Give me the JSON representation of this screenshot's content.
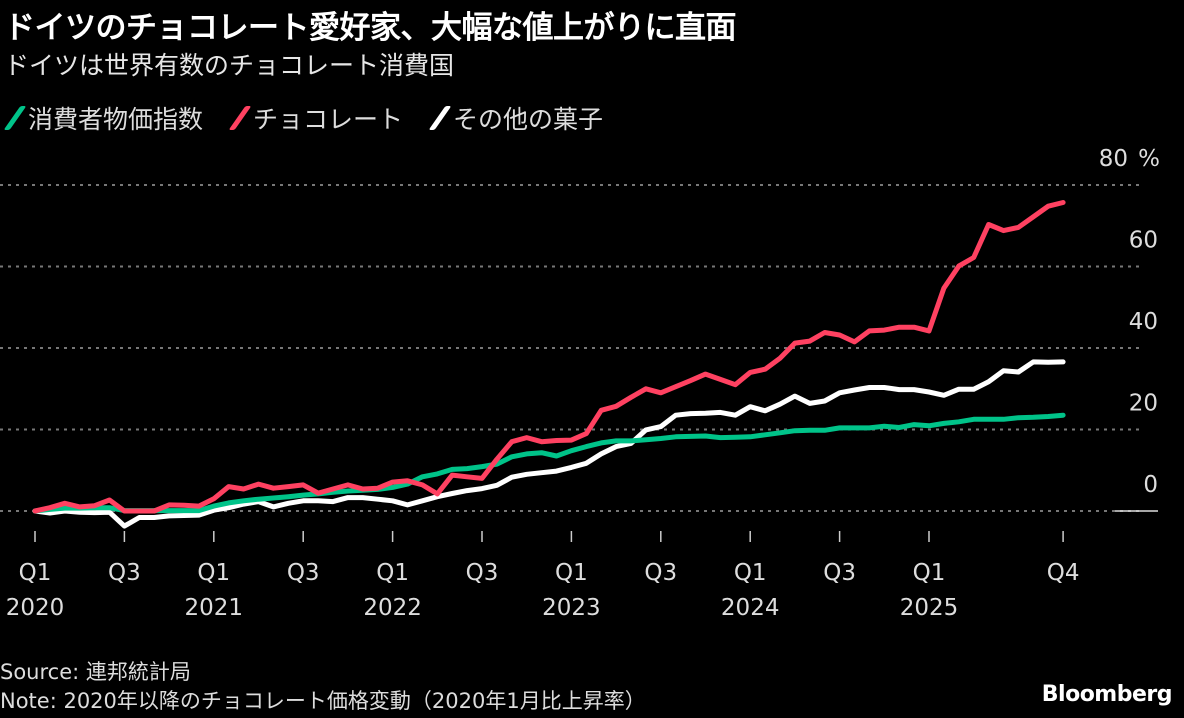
{
  "title": "ドイツのチョコレート愛好家、大幅な値上がりに直面",
  "subtitle": "ドイツは世界有数のチョコレート消費国",
  "source": "Source: 連邦統計局",
  "note": "Note: 2020年以降のチョコレート価格変動（2020年1月比上昇率）",
  "brand": "Bloomberg",
  "chart_data": {
    "type": "line",
    "x_start": "2020-01",
    "x_end": "2025-10",
    "x_frequency": "monthly",
    "ylim": [
      0,
      80
    ],
    "yunit": "%",
    "grid": true,
    "legend_position": "top-left",
    "y_ticks": [
      "80",
      "60",
      "40",
      "20",
      "0"
    ],
    "y_unit_label": "%",
    "x_ticks": [
      {
        "q": "Q1",
        "year": "2020",
        "month": 0
      },
      {
        "q": "Q3",
        "year": "",
        "month": 6
      },
      {
        "q": "Q1",
        "year": "2021",
        "month": 12
      },
      {
        "q": "Q3",
        "year": "",
        "month": 18
      },
      {
        "q": "Q1",
        "year": "2022",
        "month": 24
      },
      {
        "q": "Q3",
        "year": "",
        "month": 30
      },
      {
        "q": "Q1",
        "year": "2023",
        "month": 36
      },
      {
        "q": "Q3",
        "year": "",
        "month": 42
      },
      {
        "q": "Q1",
        "year": "2024",
        "month": 48
      },
      {
        "q": "Q3",
        "year": "",
        "month": 54
      },
      {
        "q": "Q1",
        "year": "2025",
        "month": 60
      },
      {
        "q": "Q4",
        "year": "",
        "month": 69
      }
    ],
    "series": [
      {
        "name": "消費者物価指数",
        "color": "#00c389",
        "values": [
          0,
          0.4,
          0.7,
          0.7,
          0.8,
          0.8,
          0.1,
          0.1,
          0.1,
          0.1,
          0.1,
          0.1,
          1.2,
          2,
          2.5,
          2.9,
          3.2,
          3.5,
          3.9,
          4.2,
          4.6,
          4.9,
          5.1,
          5.3,
          5.8,
          6.6,
          8.4,
          9.1,
          10.2,
          10.4,
          10.9,
          11.5,
          13.3,
          14,
          14.3,
          13.5,
          14.8,
          15.8,
          16.7,
          17.2,
          17.2,
          17.5,
          17.8,
          18.2,
          18.3,
          18.4,
          18,
          18.1,
          18.2,
          18.7,
          19.2,
          19.7,
          19.8,
          19.8,
          20.4,
          20.4,
          20.4,
          20.8,
          20.5,
          21.2,
          20.9,
          21.5,
          21.9,
          22.5,
          22.5,
          22.5,
          22.9,
          23,
          23.2,
          23.5
        ]
      },
      {
        "name": "チョコレート",
        "color": "#ff4161",
        "values": [
          0,
          0.8,
          1.9,
          1,
          1.3,
          2.7,
          0,
          0,
          0,
          1.5,
          1.4,
          1.2,
          3,
          6,
          5.4,
          6.6,
          5.6,
          6,
          6.4,
          4.4,
          5.4,
          6.4,
          5.4,
          5.6,
          7.1,
          7.4,
          6.4,
          4.2,
          8.8,
          8.4,
          8,
          12.7,
          17,
          18,
          17,
          17.3,
          17.4,
          19,
          24.7,
          25.7,
          27.9,
          30,
          29,
          30.5,
          32,
          33.6,
          32.3,
          31,
          34,
          34.8,
          37.5,
          41.2,
          41.7,
          43.8,
          43.2,
          41.5,
          44.2,
          44.4,
          45.1,
          45.1,
          44.2,
          54.7,
          60.1,
          62.2,
          70.3,
          68.8,
          69.6,
          72.2,
          74.8,
          75.7
        ]
      },
      {
        "name": "その他の菓子",
        "color": "#ffffff",
        "values": [
          0,
          -0.5,
          0,
          -0.3,
          -0.4,
          -0.3,
          -3.7,
          -1.6,
          -1.6,
          -1.2,
          -1.1,
          -1,
          0.2,
          0.8,
          1.7,
          2.3,
          1,
          1.9,
          2.5,
          2.5,
          2.3,
          3.3,
          3.3,
          2.9,
          2.5,
          1.5,
          2.5,
          3.5,
          4.3,
          5,
          5.5,
          6.3,
          8.3,
          9,
          9.4,
          9.8,
          10.7,
          11.7,
          14,
          15.8,
          16.6,
          19.9,
          20.7,
          23.5,
          23.9,
          24,
          24.2,
          23.5,
          25.6,
          24.6,
          26.2,
          28.2,
          26.4,
          27,
          29,
          29.7,
          30.3,
          30.3,
          29.8,
          29.8,
          29.2,
          28.4,
          29.9,
          29.9,
          31.7,
          34.4,
          34.1,
          36.6,
          36.5,
          36.6
        ]
      }
    ]
  }
}
